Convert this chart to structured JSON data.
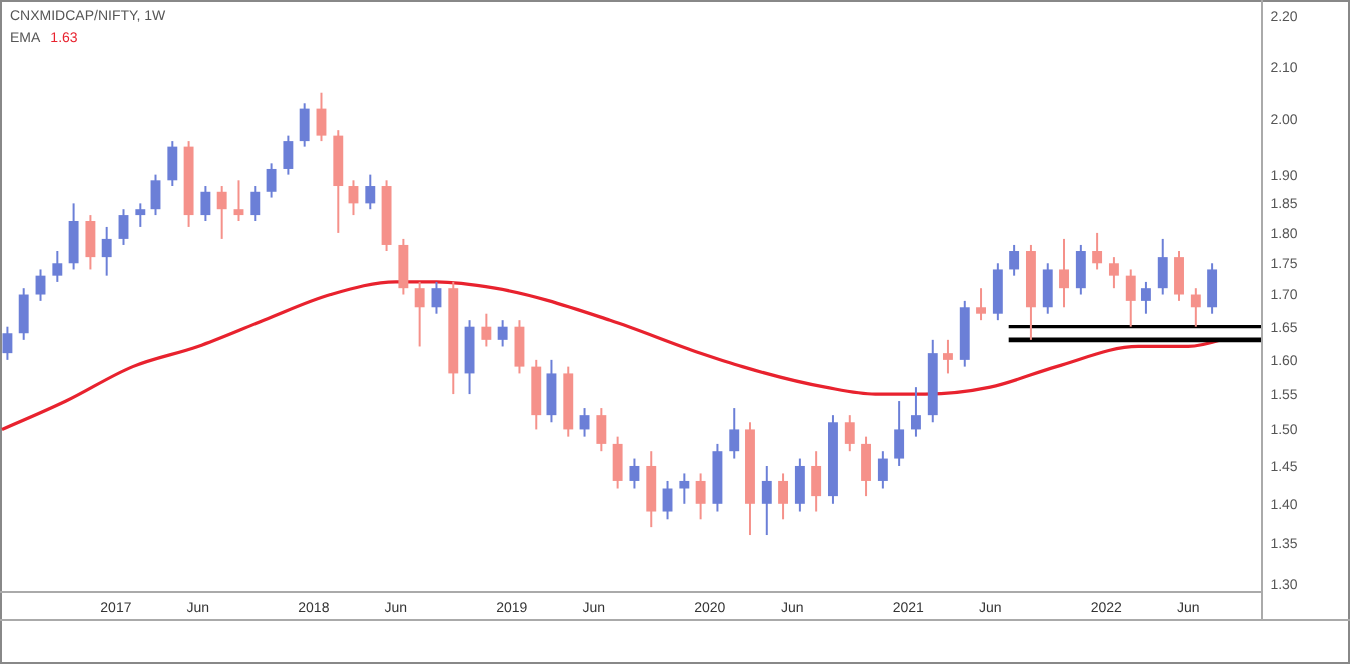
{
  "chart_data": {
    "type": "candlestick",
    "title": "CNXMIDCAP/NIFTY, 1W",
    "legend": "top left",
    "log": true,
    "x": [
      "2016-06-15",
      "2016-07-15",
      "2016-08-15",
      "2016-09-15",
      "2016-10-15",
      "2016-11-15",
      "2016-12-15",
      "2017-01-15",
      "2017-02-15",
      "2017-03-15",
      "2017-04-15",
      "2017-05-15",
      "2017-06-15",
      "2017-07-15",
      "2017-08-15",
      "2017-09-15",
      "2017-10-15",
      "2017-11-15",
      "2017-12-15",
      "2018-01-15",
      "2018-02-15",
      "2018-03-15",
      "2018-04-15",
      "2018-05-15",
      "2018-06-15",
      "2018-07-15",
      "2018-08-15",
      "2018-09-15",
      "2018-10-15",
      "2018-11-15",
      "2018-12-15",
      "2019-01-15",
      "2019-02-15",
      "2019-03-15",
      "2019-04-15",
      "2019-05-15",
      "2019-06-15",
      "2019-07-15",
      "2019-08-15",
      "2019-09-15",
      "2019-10-15",
      "2019-11-15",
      "2019-12-15",
      "2020-01-15",
      "2020-02-15",
      "2020-03-15",
      "2020-04-15",
      "2020-05-15",
      "2020-06-15",
      "2020-07-15",
      "2020-08-15",
      "2020-09-15",
      "2020-10-15",
      "2020-11-15",
      "2020-12-15",
      "2021-01-15",
      "2021-02-15",
      "2021-03-15",
      "2021-04-15",
      "2021-05-15",
      "2021-06-15",
      "2021-07-15",
      "2021-08-15",
      "2021-09-15",
      "2021-10-15",
      "2021-11-15",
      "2021-12-15",
      "2022-01-15",
      "2022-02-15",
      "2022-03-15",
      "2022-04-15",
      "2022-05-15",
      "2022-06-15",
      "2022-07-15"
    ],
    "ohlc": [
      [
        1.61,
        1.65,
        1.6,
        1.64
      ],
      [
        1.64,
        1.71,
        1.63,
        1.7
      ],
      [
        1.7,
        1.74,
        1.69,
        1.73
      ],
      [
        1.73,
        1.77,
        1.72,
        1.75
      ],
      [
        1.75,
        1.85,
        1.74,
        1.82
      ],
      [
        1.82,
        1.83,
        1.74,
        1.76
      ],
      [
        1.76,
        1.81,
        1.73,
        1.79
      ],
      [
        1.79,
        1.84,
        1.78,
        1.83
      ],
      [
        1.83,
        1.85,
        1.81,
        1.84
      ],
      [
        1.84,
        1.9,
        1.83,
        1.89
      ],
      [
        1.89,
        1.96,
        1.88,
        1.95
      ],
      [
        1.95,
        1.96,
        1.81,
        1.83
      ],
      [
        1.83,
        1.88,
        1.82,
        1.87
      ],
      [
        1.87,
        1.88,
        1.79,
        1.84
      ],
      [
        1.84,
        1.89,
        1.82,
        1.83
      ],
      [
        1.83,
        1.88,
        1.82,
        1.87
      ],
      [
        1.87,
        1.92,
        1.86,
        1.91
      ],
      [
        1.91,
        1.97,
        1.9,
        1.96
      ],
      [
        1.96,
        2.03,
        1.95,
        2.02
      ],
      [
        2.02,
        2.05,
        1.96,
        1.97
      ],
      [
        1.97,
        1.98,
        1.8,
        1.88
      ],
      [
        1.88,
        1.89,
        1.83,
        1.85
      ],
      [
        1.85,
        1.9,
        1.84,
        1.88
      ],
      [
        1.88,
        1.89,
        1.77,
        1.78
      ],
      [
        1.78,
        1.79,
        1.7,
        1.71
      ],
      [
        1.71,
        1.72,
        1.62,
        1.68
      ],
      [
        1.68,
        1.72,
        1.67,
        1.71
      ],
      [
        1.71,
        1.72,
        1.55,
        1.58
      ],
      [
        1.58,
        1.66,
        1.55,
        1.65
      ],
      [
        1.65,
        1.67,
        1.62,
        1.63
      ],
      [
        1.63,
        1.66,
        1.62,
        1.65
      ],
      [
        1.65,
        1.66,
        1.58,
        1.59
      ],
      [
        1.59,
        1.6,
        1.5,
        1.52
      ],
      [
        1.52,
        1.6,
        1.51,
        1.58
      ],
      [
        1.58,
        1.59,
        1.49,
        1.5
      ],
      [
        1.5,
        1.53,
        1.49,
        1.52
      ],
      [
        1.52,
        1.53,
        1.47,
        1.48
      ],
      [
        1.48,
        1.49,
        1.42,
        1.43
      ],
      [
        1.43,
        1.46,
        1.42,
        1.45
      ],
      [
        1.45,
        1.47,
        1.37,
        1.39
      ],
      [
        1.39,
        1.43,
        1.38,
        1.42
      ],
      [
        1.42,
        1.44,
        1.4,
        1.43
      ],
      [
        1.43,
        1.44,
        1.38,
        1.4
      ],
      [
        1.4,
        1.48,
        1.39,
        1.47
      ],
      [
        1.47,
        1.53,
        1.46,
        1.5
      ],
      [
        1.5,
        1.51,
        1.36,
        1.4
      ],
      [
        1.4,
        1.45,
        1.36,
        1.43
      ],
      [
        1.43,
        1.44,
        1.38,
        1.4
      ],
      [
        1.4,
        1.46,
        1.39,
        1.45
      ],
      [
        1.45,
        1.47,
        1.39,
        1.41
      ],
      [
        1.41,
        1.52,
        1.4,
        1.51
      ],
      [
        1.51,
        1.52,
        1.47,
        1.48
      ],
      [
        1.48,
        1.49,
        1.41,
        1.43
      ],
      [
        1.43,
        1.47,
        1.42,
        1.46
      ],
      [
        1.46,
        1.54,
        1.45,
        1.5
      ],
      [
        1.5,
        1.56,
        1.49,
        1.52
      ],
      [
        1.52,
        1.63,
        1.51,
        1.61
      ],
      [
        1.61,
        1.63,
        1.58,
        1.6
      ],
      [
        1.6,
        1.69,
        1.59,
        1.68
      ],
      [
        1.68,
        1.71,
        1.66,
        1.67
      ],
      [
        1.67,
        1.75,
        1.66,
        1.74
      ],
      [
        1.74,
        1.78,
        1.73,
        1.77
      ],
      [
        1.77,
        1.78,
        1.63,
        1.68
      ],
      [
        1.68,
        1.75,
        1.67,
        1.74
      ],
      [
        1.74,
        1.79,
        1.68,
        1.71
      ],
      [
        1.71,
        1.78,
        1.7,
        1.77
      ],
      [
        1.77,
        1.8,
        1.74,
        1.75
      ],
      [
        1.75,
        1.76,
        1.71,
        1.73
      ],
      [
        1.73,
        1.74,
        1.65,
        1.69
      ],
      [
        1.69,
        1.72,
        1.67,
        1.71
      ],
      [
        1.71,
        1.79,
        1.7,
        1.76
      ],
      [
        1.76,
        1.77,
        1.69,
        1.7
      ],
      [
        1.7,
        1.71,
        1.65,
        1.68
      ],
      [
        1.68,
        1.75,
        1.67,
        1.74
      ]
    ],
    "colors": [
      "#6b7fd7",
      "#6b7fd7",
      "#6b7fd7",
      "#6b7fd7",
      "#6b7fd7",
      "#f5918a",
      "#6b7fd7",
      "#6b7fd7",
      "#6b7fd7",
      "#6b7fd7",
      "#6b7fd7",
      "#f5918a",
      "#6b7fd7",
      "#f5918a",
      "#f5918a",
      "#6b7fd7",
      "#6b7fd7",
      "#6b7fd7",
      "#6b7fd7",
      "#f5918a",
      "#f5918a",
      "#f5918a",
      "#6b7fd7",
      "#f5918a",
      "#f5918a",
      "#f5918a",
      "#6b7fd7",
      "#f5918a",
      "#6b7fd7",
      "#f5918a",
      "#6b7fd7",
      "#f5918a",
      "#f5918a",
      "#6b7fd7",
      "#f5918a",
      "#6b7fd7",
      "#f5918a",
      "#f5918a",
      "#6b7fd7",
      "#f5918a",
      "#6b7fd7",
      "#6b7fd7",
      "#f5918a",
      "#6b7fd7",
      "#6b7fd7",
      "#f5918a",
      "#6b7fd7",
      "#f5918a",
      "#6b7fd7",
      "#f5918a",
      "#6b7fd7",
      "#f5918a",
      "#f5918a",
      "#6b7fd7",
      "#6b7fd7",
      "#6b7fd7",
      "#6b7fd7",
      "#f5918a",
      "#6b7fd7",
      "#f5918a",
      "#6b7fd7",
      "#6b7fd7",
      "#f5918a",
      "#6b7fd7",
      "#f5918a",
      "#6b7fd7",
      "#f5918a",
      "#f5918a",
      "#f5918a",
      "#6b7fd7",
      "#6b7fd7",
      "#f5918a",
      "#f5918a",
      "#6b7fd7"
    ],
    "series": [
      {
        "name": "EMA",
        "type": "line",
        "color": "#e8222e",
        "x": [
          "2016-06-05",
          "2016-10-01",
          "2017-02-01",
          "2017-06-01",
          "2017-10-01",
          "2018-02-01",
          "2018-06-01",
          "2018-08-15",
          "2018-12-01",
          "2019-07-01",
          "2019-12-15",
          "2020-03-01",
          "2020-08-01",
          "2020-11-01",
          "2021-02-01",
          "2021-06-01",
          "2021-10-01",
          "2022-03-01",
          "2022-06-01",
          "2022-08-01"
        ],
        "values": [
          1.5,
          1.54,
          1.59,
          1.62,
          1.66,
          1.7,
          1.72,
          1.72,
          1.71,
          1.66,
          1.61,
          1.59,
          1.56,
          1.55,
          1.55,
          1.56,
          1.59,
          1.62,
          1.62,
          1.63
        ]
      },
      {
        "type": "line",
        "color": "#000000",
        "x": [
          "2021-07-05",
          "2022-10-15"
        ],
        "values": [
          1.65,
          1.65
        ]
      },
      {
        "type": "line",
        "color": "#000000",
        "x": [
          "2021-07-05",
          "2022-10-15"
        ],
        "values": [
          1.63,
          1.63
        ]
      }
    ],
    "annotations": [
      "1.63"
    ],
    "xlim": [
      "2016-06-05",
      "2022-10-15"
    ],
    "ylim": [
      1.29,
      2.23
    ],
    "xticks": [
      {
        "value": "2017-01-01",
        "label": "2017"
      },
      {
        "value": "2017-06-01",
        "label": "Jun"
      },
      {
        "value": "2018-01-01",
        "label": "2018"
      },
      {
        "value": "2018-06-01",
        "label": "Jun"
      },
      {
        "value": "2019-01-01",
        "label": "2019"
      },
      {
        "value": "2019-06-01",
        "label": "Jun"
      },
      {
        "value": "2020-01-01",
        "label": "2020"
      },
      {
        "value": "2020-06-01",
        "label": "Jun"
      },
      {
        "value": "2021-01-01",
        "label": "2021"
      },
      {
        "value": "2021-06-01",
        "label": "Jun"
      },
      {
        "value": "2022-01-01",
        "label": "2022"
      },
      {
        "value": "2022-06-01",
        "label": "Jun"
      }
    ],
    "yticks": [
      {
        "value": 1.3,
        "label": "1.30"
      },
      {
        "value": 1.35,
        "label": "1.35"
      },
      {
        "value": 1.4,
        "label": "1.40"
      },
      {
        "value": 1.45,
        "label": "1.45"
      },
      {
        "value": 1.5,
        "label": "1.50"
      },
      {
        "value": 1.55,
        "label": "1.55"
      },
      {
        "value": 1.6,
        "label": "1.60"
      },
      {
        "value": 1.65,
        "label": "1.65"
      },
      {
        "value": 1.7,
        "label": "1.70"
      },
      {
        "value": 1.75,
        "label": "1.75"
      },
      {
        "value": 1.8,
        "label": "1.80"
      },
      {
        "value": 1.85,
        "label": "1.85"
      },
      {
        "value": 1.9,
        "label": "1.90"
      },
      {
        "value": 2.0,
        "label": "2.00"
      },
      {
        "value": 2.1,
        "label": "2.10"
      },
      {
        "value": 2.2,
        "label": "2.20"
      }
    ]
  }
}
